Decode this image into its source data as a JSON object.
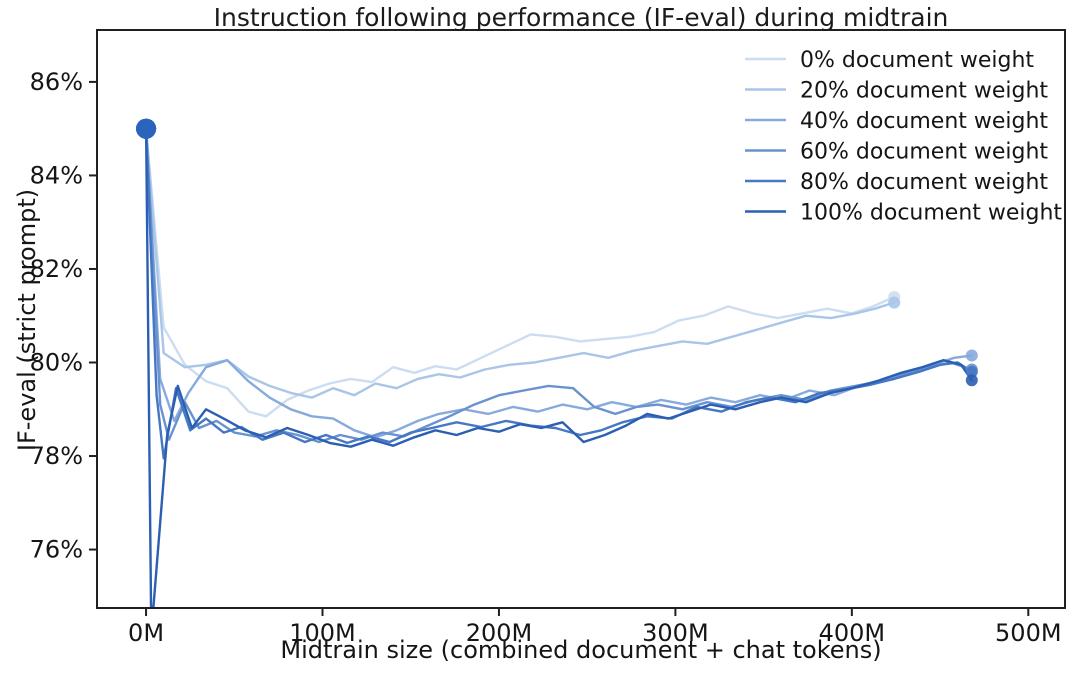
{
  "figure": {
    "title": "Instruction following performance (IF-eval) during midtrain",
    "xlabel": "Midtrain size (combined document + chat tokens)",
    "ylabel": "IF-eval (strict prompt)"
  },
  "colors": {
    "background": "#ffffff",
    "axis": "#202020",
    "tick_label": "#151515",
    "legend_text": "#151515",
    "start_dot": "#2b64bd"
  },
  "chart_data": {
    "type": "line",
    "title": "Instruction following performance (IF-eval) during midtrain",
    "xlabel": "Midtrain size (combined document + chat tokens)",
    "ylabel": "IF-eval (strict prompt)",
    "x_units": "millions of tokens",
    "y_units": "percent",
    "xlim": [
      -27.8,
      520.8
    ],
    "ylim": [
      74.75,
      87.11
    ],
    "grid": false,
    "xticks": [
      {
        "value": 0,
        "label": "0M"
      },
      {
        "value": 100,
        "label": "100M"
      },
      {
        "value": 200,
        "label": "200M"
      },
      {
        "value": 300,
        "label": "300M"
      },
      {
        "value": 400,
        "label": "400M"
      },
      {
        "value": 500,
        "label": "500M"
      }
    ],
    "yticks": [
      {
        "value": 76,
        "label": "76%"
      },
      {
        "value": 78,
        "label": "78%"
      },
      {
        "value": 80,
        "label": "80%"
      },
      {
        "value": 82,
        "label": "82%"
      },
      {
        "value": 84,
        "label": "84%"
      },
      {
        "value": 86,
        "label": "86%"
      }
    ],
    "legend": {
      "position": "upper right",
      "entries": [
        {
          "label": "0% document weight",
          "color": "#cdddf1"
        },
        {
          "label": "20% document weight",
          "color": "#a9c5e8"
        },
        {
          "label": "40% document weight",
          "color": "#87aadd"
        },
        {
          "label": "60% document weight",
          "color": "#6992d1"
        },
        {
          "label": "80% document weight",
          "color": "#4677c3"
        },
        {
          "label": "100% document weight",
          "color": "#2a5fb2"
        }
      ]
    },
    "series": [
      {
        "name": "0% document weight",
        "color": "#cdddf1",
        "start_marker": true,
        "end_marker": true,
        "points": [
          [
            0,
            85.0
          ],
          [
            10,
            80.75
          ],
          [
            22,
            79.95
          ],
          [
            34,
            79.6
          ],
          [
            46,
            79.45
          ],
          [
            58,
            78.95
          ],
          [
            68,
            78.85
          ],
          [
            80,
            79.2
          ],
          [
            92,
            79.4
          ],
          [
            104,
            79.55
          ],
          [
            116,
            79.65
          ],
          [
            128,
            79.58
          ],
          [
            140,
            79.9
          ],
          [
            152,
            79.78
          ],
          [
            164,
            79.92
          ],
          [
            176,
            79.85
          ],
          [
            190,
            80.1
          ],
          [
            204,
            80.35
          ],
          [
            218,
            80.6
          ],
          [
            232,
            80.55
          ],
          [
            246,
            80.45
          ],
          [
            260,
            80.5
          ],
          [
            274,
            80.55
          ],
          [
            288,
            80.65
          ],
          [
            302,
            80.9
          ],
          [
            316,
            81.0
          ],
          [
            330,
            81.2
          ],
          [
            344,
            81.05
          ],
          [
            358,
            80.95
          ],
          [
            372,
            81.05
          ],
          [
            386,
            81.15
          ],
          [
            400,
            81.05
          ],
          [
            412,
            81.2
          ],
          [
            424,
            81.4
          ]
        ]
      },
      {
        "name": "20% document weight",
        "color": "#a9c5e8",
        "start_marker": true,
        "end_marker": true,
        "points": [
          [
            0,
            85.0
          ],
          [
            10,
            80.2
          ],
          [
            22,
            79.9
          ],
          [
            34,
            79.95
          ],
          [
            46,
            80.05
          ],
          [
            58,
            79.7
          ],
          [
            70,
            79.5
          ],
          [
            82,
            79.35
          ],
          [
            94,
            79.25
          ],
          [
            106,
            79.45
          ],
          [
            118,
            79.3
          ],
          [
            130,
            79.55
          ],
          [
            142,
            79.45
          ],
          [
            154,
            79.65
          ],
          [
            166,
            79.75
          ],
          [
            178,
            79.68
          ],
          [
            192,
            79.85
          ],
          [
            206,
            79.95
          ],
          [
            220,
            80.0
          ],
          [
            234,
            80.1
          ],
          [
            248,
            80.2
          ],
          [
            262,
            80.1
          ],
          [
            276,
            80.25
          ],
          [
            290,
            80.35
          ],
          [
            304,
            80.45
          ],
          [
            318,
            80.4
          ],
          [
            332,
            80.55
          ],
          [
            346,
            80.7
          ],
          [
            360,
            80.85
          ],
          [
            374,
            81.0
          ],
          [
            388,
            80.95
          ],
          [
            402,
            81.05
          ],
          [
            413,
            81.15
          ],
          [
            424,
            81.28
          ]
        ]
      },
      {
        "name": "40% document weight",
        "color": "#87aadd",
        "start_marker": true,
        "end_marker": true,
        "points": [
          [
            0,
            85.0
          ],
          [
            8,
            79.65
          ],
          [
            16,
            78.75
          ],
          [
            24,
            79.35
          ],
          [
            34,
            79.9
          ],
          [
            46,
            80.05
          ],
          [
            58,
            79.6
          ],
          [
            70,
            79.25
          ],
          [
            82,
            79.0
          ],
          [
            94,
            78.85
          ],
          [
            106,
            78.8
          ],
          [
            118,
            78.55
          ],
          [
            130,
            78.4
          ],
          [
            142,
            78.55
          ],
          [
            154,
            78.75
          ],
          [
            166,
            78.9
          ],
          [
            180,
            79.0
          ],
          [
            194,
            78.9
          ],
          [
            208,
            79.05
          ],
          [
            222,
            78.95
          ],
          [
            236,
            79.1
          ],
          [
            250,
            79.0
          ],
          [
            264,
            79.15
          ],
          [
            278,
            79.05
          ],
          [
            292,
            79.2
          ],
          [
            306,
            79.1
          ],
          [
            320,
            79.25
          ],
          [
            334,
            79.15
          ],
          [
            348,
            79.3
          ],
          [
            362,
            79.2
          ],
          [
            376,
            79.4
          ],
          [
            390,
            79.3
          ],
          [
            404,
            79.5
          ],
          [
            418,
            79.6
          ],
          [
            432,
            79.8
          ],
          [
            446,
            79.95
          ],
          [
            458,
            80.1
          ],
          [
            468,
            80.15
          ]
        ]
      },
      {
        "name": "60% document weight",
        "color": "#6992d1",
        "start_marker": true,
        "end_marker": true,
        "points": [
          [
            0,
            85.0
          ],
          [
            8,
            79.1
          ],
          [
            13,
            78.35
          ],
          [
            22,
            79.15
          ],
          [
            30,
            78.6
          ],
          [
            40,
            78.75
          ],
          [
            50,
            78.5
          ],
          [
            62,
            78.42
          ],
          [
            74,
            78.55
          ],
          [
            86,
            78.45
          ],
          [
            98,
            78.3
          ],
          [
            110,
            78.45
          ],
          [
            122,
            78.35
          ],
          [
            134,
            78.5
          ],
          [
            146,
            78.42
          ],
          [
            158,
            78.62
          ],
          [
            172,
            78.85
          ],
          [
            186,
            79.1
          ],
          [
            200,
            79.3
          ],
          [
            214,
            79.4
          ],
          [
            228,
            79.5
          ],
          [
            242,
            79.45
          ],
          [
            254,
            79.05
          ],
          [
            266,
            78.9
          ],
          [
            278,
            79.05
          ],
          [
            290,
            79.1
          ],
          [
            304,
            79.0
          ],
          [
            318,
            79.15
          ],
          [
            332,
            79.05
          ],
          [
            346,
            79.2
          ],
          [
            360,
            79.3
          ],
          [
            374,
            79.2
          ],
          [
            388,
            79.4
          ],
          [
            402,
            79.5
          ],
          [
            416,
            79.6
          ],
          [
            430,
            79.75
          ],
          [
            444,
            79.9
          ],
          [
            456,
            80.0
          ],
          [
            468,
            79.85
          ]
        ]
      },
      {
        "name": "80% document weight",
        "color": "#4677c3",
        "start_marker": true,
        "end_marker": true,
        "points": [
          [
            0,
            85.0
          ],
          [
            6,
            79.3
          ],
          [
            10,
            77.95
          ],
          [
            17,
            79.45
          ],
          [
            25,
            78.55
          ],
          [
            34,
            78.8
          ],
          [
            44,
            78.5
          ],
          [
            54,
            78.62
          ],
          [
            66,
            78.35
          ],
          [
            78,
            78.5
          ],
          [
            90,
            78.3
          ],
          [
            102,
            78.45
          ],
          [
            114,
            78.28
          ],
          [
            126,
            78.42
          ],
          [
            138,
            78.3
          ],
          [
            150,
            78.5
          ],
          [
            162,
            78.6
          ],
          [
            176,
            78.72
          ],
          [
            190,
            78.62
          ],
          [
            204,
            78.75
          ],
          [
            218,
            78.65
          ],
          [
            232,
            78.6
          ],
          [
            246,
            78.45
          ],
          [
            258,
            78.55
          ],
          [
            270,
            78.72
          ],
          [
            284,
            78.85
          ],
          [
            298,
            78.8
          ],
          [
            312,
            79.05
          ],
          [
            326,
            78.95
          ],
          [
            340,
            79.15
          ],
          [
            354,
            79.25
          ],
          [
            368,
            79.15
          ],
          [
            382,
            79.35
          ],
          [
            396,
            79.42
          ],
          [
            410,
            79.52
          ],
          [
            424,
            79.65
          ],
          [
            438,
            79.8
          ],
          [
            450,
            79.95
          ],
          [
            460,
            80.0
          ],
          [
            468,
            79.8
          ]
        ]
      },
      {
        "name": "100% document weight",
        "color": "#2a5fb2",
        "start_marker": true,
        "end_marker": true,
        "points": [
          [
            0,
            85.0
          ],
          [
            3,
            74.2
          ],
          [
            12,
            78.45
          ],
          [
            18,
            79.5
          ],
          [
            26,
            78.6
          ],
          [
            34,
            79.0
          ],
          [
            44,
            78.8
          ],
          [
            56,
            78.55
          ],
          [
            68,
            78.4
          ],
          [
            80,
            78.6
          ],
          [
            92,
            78.45
          ],
          [
            104,
            78.28
          ],
          [
            116,
            78.2
          ],
          [
            128,
            78.35
          ],
          [
            140,
            78.22
          ],
          [
            152,
            78.4
          ],
          [
            164,
            78.55
          ],
          [
            176,
            78.45
          ],
          [
            188,
            78.6
          ],
          [
            200,
            78.52
          ],
          [
            212,
            78.68
          ],
          [
            224,
            78.6
          ],
          [
            236,
            78.72
          ],
          [
            248,
            78.3
          ],
          [
            260,
            78.45
          ],
          [
            272,
            78.65
          ],
          [
            284,
            78.9
          ],
          [
            296,
            78.8
          ],
          [
            308,
            78.95
          ],
          [
            320,
            79.1
          ],
          [
            334,
            79.0
          ],
          [
            348,
            79.15
          ],
          [
            360,
            79.25
          ],
          [
            374,
            79.15
          ],
          [
            388,
            79.35
          ],
          [
            400,
            79.45
          ],
          [
            414,
            79.6
          ],
          [
            428,
            79.78
          ],
          [
            440,
            79.9
          ],
          [
            452,
            80.05
          ],
          [
            462,
            79.95
          ],
          [
            468,
            79.62
          ]
        ]
      }
    ]
  }
}
